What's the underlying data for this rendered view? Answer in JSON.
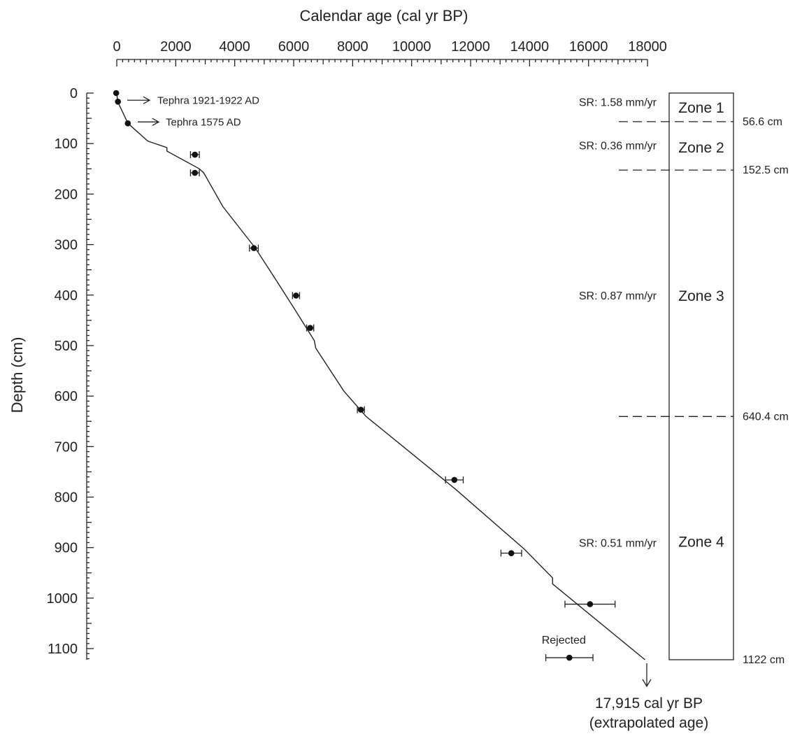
{
  "chart_data": {
    "type": "scatter",
    "xlabel": "Calendar age (cal yr BP)",
    "ylabel": "Depth (cm)",
    "xlim": [
      0,
      18000
    ],
    "ylim": [
      0,
      1122
    ],
    "x_ticks": [
      "0",
      "2000",
      "4000",
      "6000",
      "8000",
      "10000",
      "12000",
      "14000",
      "16000",
      "18000"
    ],
    "y_ticks": [
      "0",
      "100",
      "200",
      "300",
      "400",
      "500",
      "600",
      "700",
      "800",
      "900",
      "1000",
      "1100"
    ],
    "x_ticks_values": [
      0,
      2000,
      4000,
      6000,
      8000,
      10000,
      12000,
      14000,
      16000,
      18000
    ],
    "y_ticks_values": [
      0,
      100,
      200,
      300,
      400,
      500,
      600,
      700,
      800,
      900,
      1000,
      1100
    ],
    "dated_points": [
      {
        "age": -20,
        "depth": 0,
        "err": 0
      },
      {
        "age": 40,
        "depth": 17,
        "err": 0
      },
      {
        "age": 375,
        "depth": 60,
        "err": 0
      },
      {
        "age": 2650,
        "depth": 122,
        "err": 150
      },
      {
        "age": 2650,
        "depth": 158,
        "err": 150
      },
      {
        "age": 4650,
        "depth": 307,
        "err": 150
      },
      {
        "age": 6080,
        "depth": 401,
        "err": 120
      },
      {
        "age": 6560,
        "depth": 465,
        "err": 120
      },
      {
        "age": 8280,
        "depth": 627,
        "err": 120
      },
      {
        "age": 11450,
        "depth": 766,
        "err": 300
      },
      {
        "age": 13380,
        "depth": 911,
        "err": 350
      },
      {
        "age": 16050,
        "depth": 1012,
        "err": 850
      }
    ],
    "rejected_point": {
      "age": 15350,
      "depth": 1118,
      "err": 800,
      "label": "Rejected"
    },
    "age_depth_model": [
      [
        0,
        0
      ],
      [
        30,
        17
      ],
      [
        380,
        60
      ],
      [
        1050,
        95
      ],
      [
        1700,
        108
      ],
      [
        1700,
        115
      ],
      [
        2800,
        150
      ],
      [
        2950,
        158
      ],
      [
        3600,
        225
      ],
      [
        4700,
        307
      ],
      [
        5400,
        370
      ],
      [
        6000,
        425
      ],
      [
        6700,
        490
      ],
      [
        6750,
        505
      ],
      [
        7700,
        590
      ],
      [
        8450,
        640
      ],
      [
        11500,
        785
      ],
      [
        13820,
        903
      ],
      [
        14780,
        960
      ],
      [
        14780,
        972
      ],
      [
        17915,
        1122
      ]
    ],
    "tephra_annotations": [
      {
        "label": "Tephra 1921-1922 AD",
        "age": 40,
        "depth": 17
      },
      {
        "label": "Tephra 1575 AD",
        "age": 375,
        "depth": 60
      }
    ],
    "sedimentation_rates": [
      {
        "label": "SR: 1.58 mm/yr",
        "depth": 17
      },
      {
        "label": "SR: 0.36 mm/yr",
        "depth": 103
      },
      {
        "label": "SR: 0.87 mm/yr",
        "depth": 400
      },
      {
        "label": "SR: 0.51 mm/yr",
        "depth": 890
      }
    ],
    "zones": [
      {
        "name": "Zone 1",
        "label_depth": 28
      },
      {
        "name": "Zone 2",
        "label_depth": 107
      },
      {
        "name": "Zone 3",
        "label_depth": 400
      },
      {
        "name": "Zone 4",
        "label_depth": 887
      }
    ],
    "zone_boundaries": [
      {
        "depth": 56.6,
        "label": "56.6 cm"
      },
      {
        "depth": 152.5,
        "label": "152.5 cm"
      },
      {
        "depth": 640.4,
        "label": "640.4 cm"
      }
    ],
    "core_bottom": {
      "depth": 1122,
      "label": "1122 cm"
    },
    "extrapolation_note": [
      "17,915 cal yr BP",
      "(extrapolated age)"
    ]
  }
}
